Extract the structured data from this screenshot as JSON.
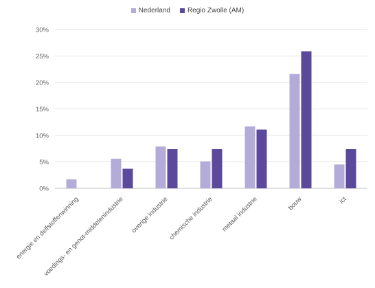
{
  "chart_data": {
    "type": "bar",
    "categories": [
      "energie en delfstoffenwinning",
      "voedings- en genot-middelenindustrie",
      "overige industrie",
      "chemische industrie",
      "metaal industrie",
      "bouw",
      "ict"
    ],
    "series": [
      {
        "name": "Nederland",
        "color": "#b4acd8",
        "values": [
          1.7,
          5.6,
          7.9,
          5.1,
          11.7,
          21.6,
          4.5
        ]
      },
      {
        "name": "Regio Zwolle (AM)",
        "color": "#5b4a9b",
        "values": [
          null,
          3.7,
          7.4,
          7.4,
          11.1,
          25.9,
          7.4
        ]
      }
    ],
    "y_ticks": [
      "0%",
      "5%",
      "10%",
      "15%",
      "20%",
      "25%",
      "30%"
    ],
    "ylim": [
      0,
      30
    ],
    "grid": true,
    "legend_position": "top-center",
    "title": "",
    "xlabel": "",
    "ylabel": ""
  }
}
